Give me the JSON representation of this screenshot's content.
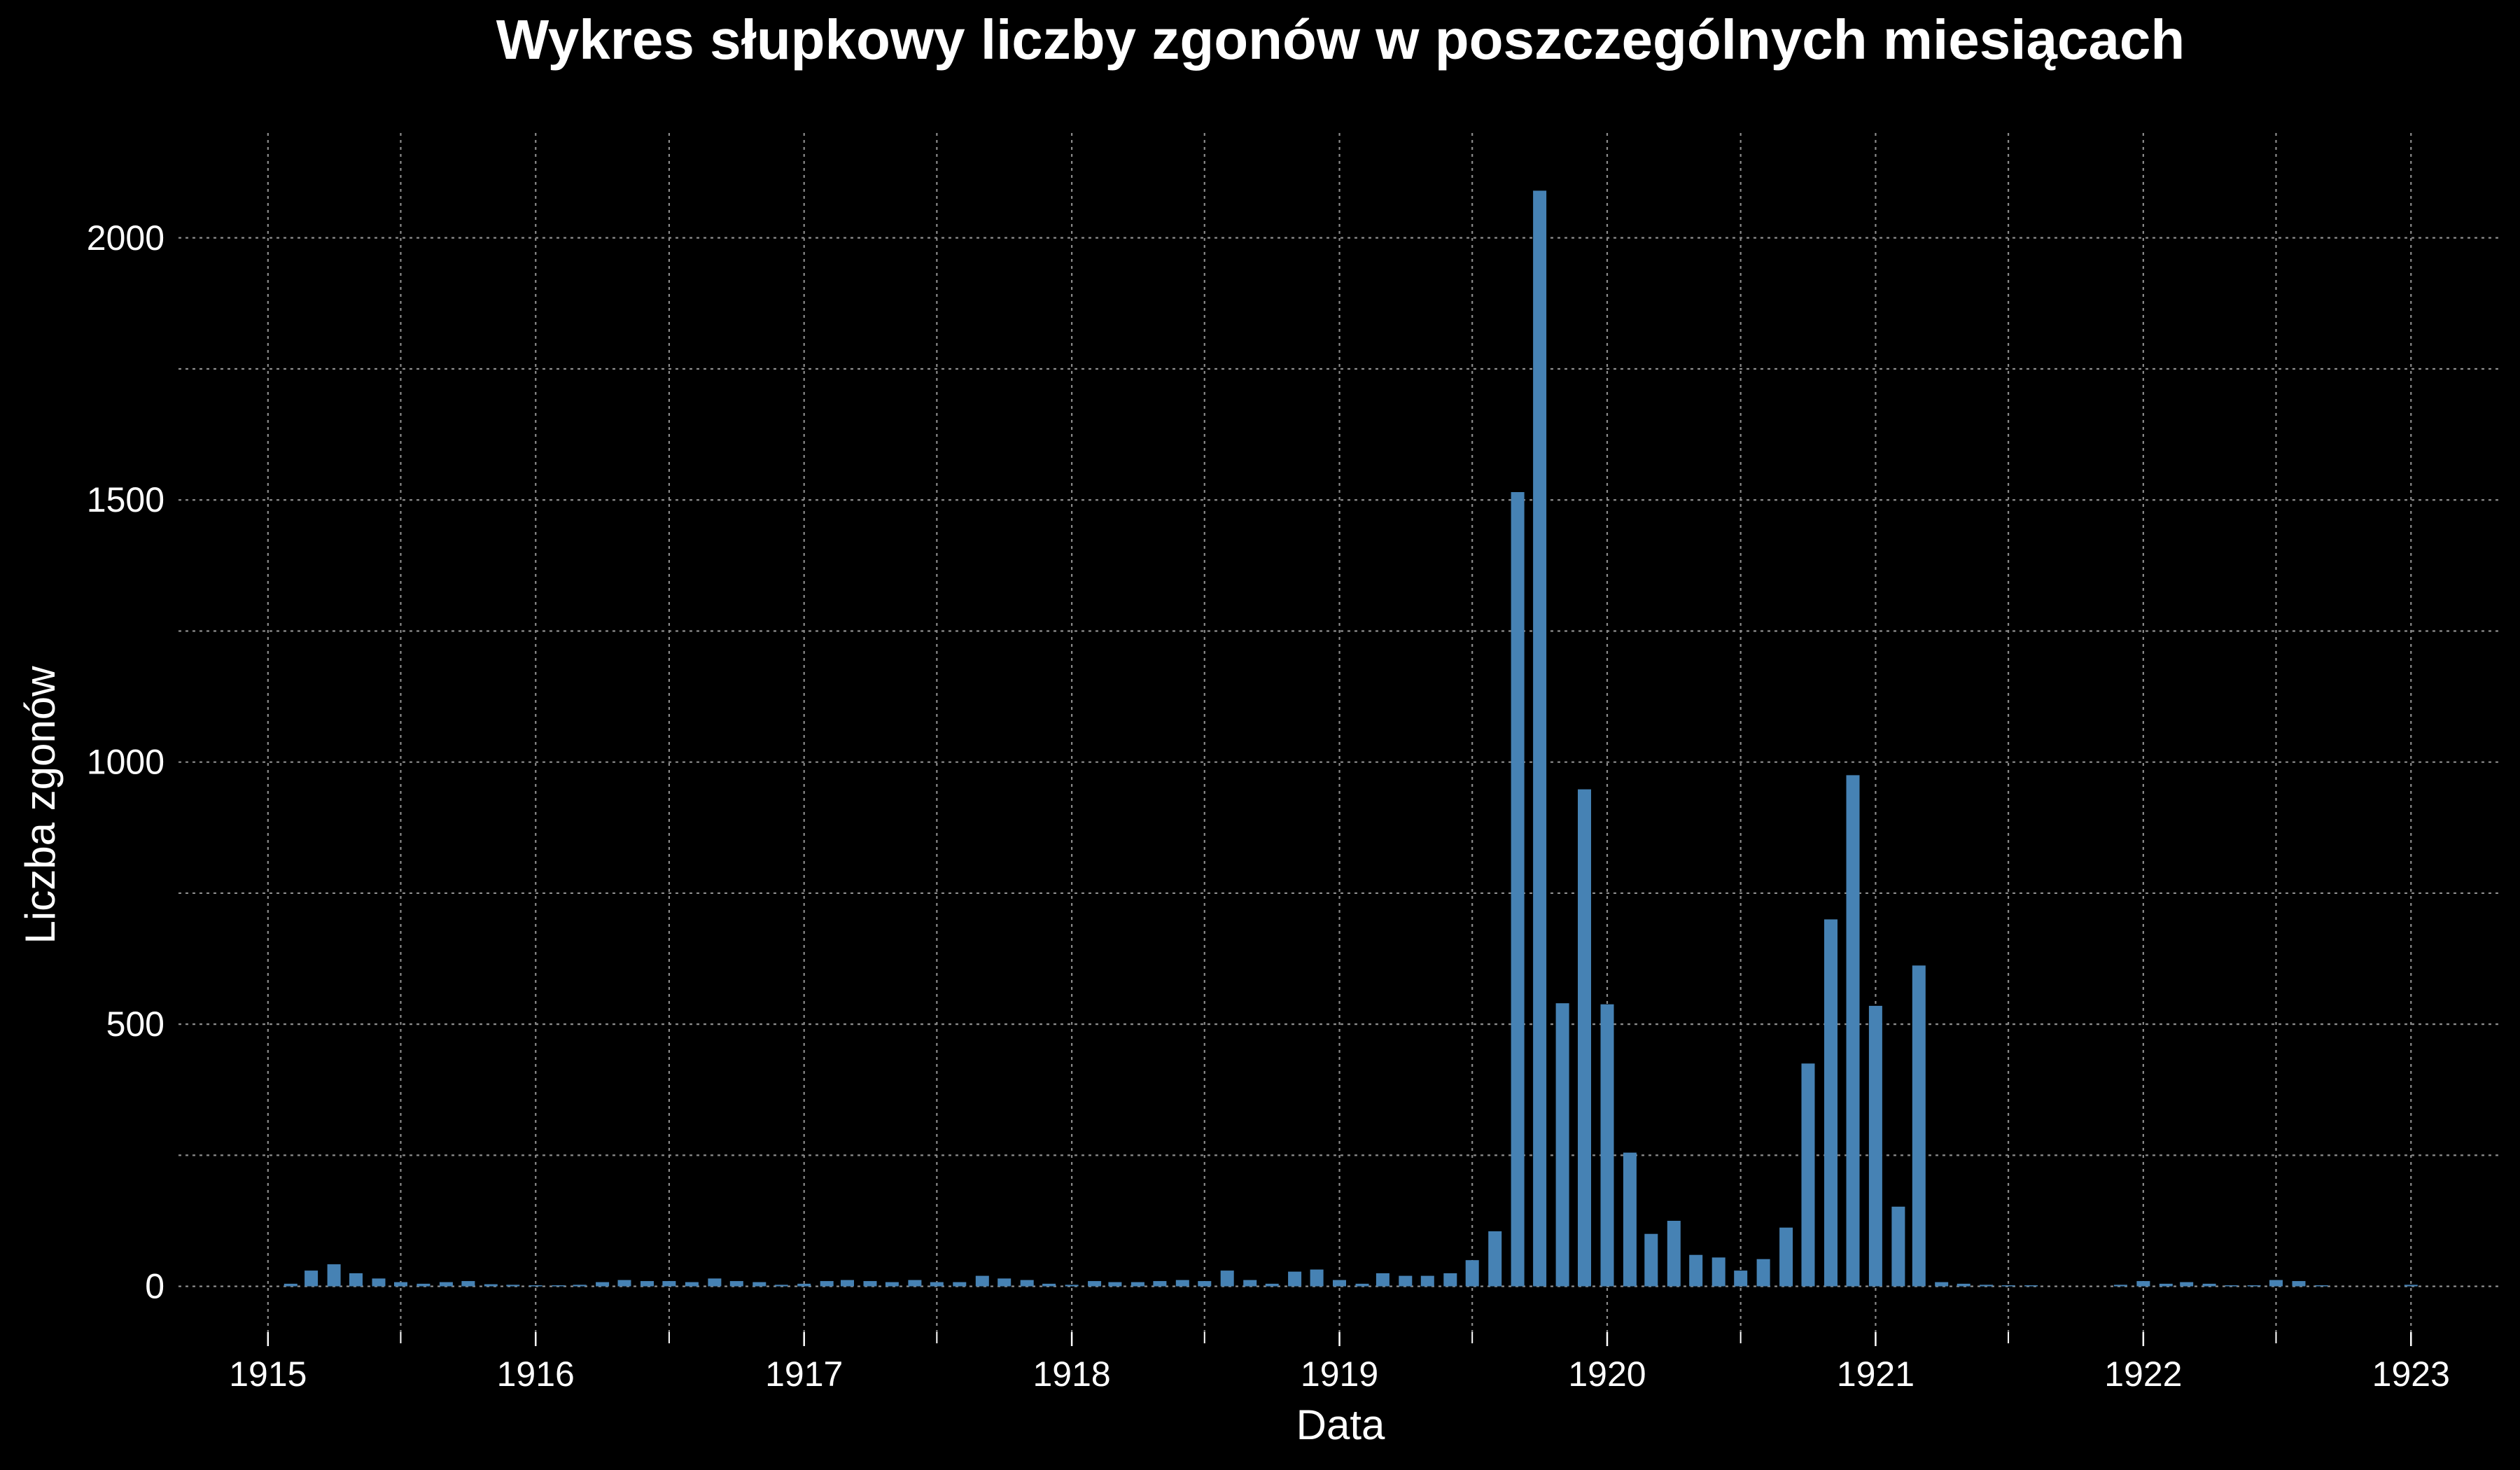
{
  "chart_data": {
    "type": "bar",
    "title": "Wykres słupkowy liczby zgonów w poszczególnych miesiącach",
    "xlabel": "Data",
    "ylabel": "Liczba zgonów",
    "x_tick_labels": [
      "1915",
      "1916",
      "1917",
      "1918",
      "1919",
      "1920",
      "1921",
      "1922",
      "1923"
    ],
    "y_tick_labels": [
      "0",
      "500",
      "1000",
      "1500",
      "2000"
    ],
    "ylim": [
      -90,
      2200
    ],
    "grid": true,
    "bar_color": "#4682b4",
    "series": [
      {
        "points": [
          [
            "1915-02",
            5
          ],
          [
            "1915-03",
            30
          ],
          [
            "1915-04",
            42
          ],
          [
            "1915-05",
            25
          ],
          [
            "1915-06",
            15
          ],
          [
            "1915-07",
            8
          ],
          [
            "1915-08",
            5
          ],
          [
            "1915-09",
            8
          ],
          [
            "1915-10",
            10
          ],
          [
            "1915-11",
            4
          ],
          [
            "1915-12",
            3
          ],
          [
            "1916-01",
            2
          ],
          [
            "1916-02",
            2
          ],
          [
            "1916-03",
            3
          ],
          [
            "1916-04",
            8
          ],
          [
            "1916-05",
            12
          ],
          [
            "1916-06",
            10
          ],
          [
            "1916-07",
            10
          ],
          [
            "1916-08",
            8
          ],
          [
            "1916-09",
            15
          ],
          [
            "1916-10",
            10
          ],
          [
            "1916-11",
            8
          ],
          [
            "1916-12",
            3
          ],
          [
            "1917-01",
            5
          ],
          [
            "1917-02",
            10
          ],
          [
            "1917-03",
            12
          ],
          [
            "1917-04",
            10
          ],
          [
            "1917-05",
            8
          ],
          [
            "1917-06",
            12
          ],
          [
            "1917-07",
            8
          ],
          [
            "1917-08",
            8
          ],
          [
            "1917-09",
            20
          ],
          [
            "1917-10",
            15
          ],
          [
            "1917-11",
            12
          ],
          [
            "1917-12",
            5
          ],
          [
            "1918-01",
            3
          ],
          [
            "1918-02",
            10
          ],
          [
            "1918-03",
            8
          ],
          [
            "1918-04",
            8
          ],
          [
            "1918-05",
            10
          ],
          [
            "1918-06",
            12
          ],
          [
            "1918-07",
            10
          ],
          [
            "1918-08",
            30
          ],
          [
            "1918-09",
            12
          ],
          [
            "1918-10",
            5
          ],
          [
            "1918-11",
            28
          ],
          [
            "1918-12",
            32
          ],
          [
            "1919-01",
            12
          ],
          [
            "1919-02",
            5
          ],
          [
            "1919-03",
            25
          ],
          [
            "1919-04",
            20
          ],
          [
            "1919-05",
            20
          ],
          [
            "1919-06",
            25
          ],
          [
            "1919-07",
            50
          ],
          [
            "1919-08",
            105
          ],
          [
            "1919-09",
            1515
          ],
          [
            "1919-10",
            2090
          ],
          [
            "1919-11",
            540
          ],
          [
            "1919-12",
            948
          ],
          [
            "1920-01",
            538
          ],
          [
            "1920-02",
            255
          ],
          [
            "1920-03",
            100
          ],
          [
            "1920-04",
            125
          ],
          [
            "1920-05",
            60
          ],
          [
            "1920-06",
            55
          ],
          [
            "1920-07",
            30
          ],
          [
            "1920-08",
            52
          ],
          [
            "1920-09",
            112
          ],
          [
            "1920-10",
            425
          ],
          [
            "1920-11",
            700
          ],
          [
            "1920-12",
            975
          ],
          [
            "1921-01",
            535
          ],
          [
            "1921-02",
            152
          ],
          [
            "1921-03",
            612
          ],
          [
            "1921-04",
            8
          ],
          [
            "1921-05",
            5
          ],
          [
            "1921-06",
            3
          ],
          [
            "1921-07",
            2
          ],
          [
            "1921-08",
            2
          ],
          [
            "1921-12",
            3
          ],
          [
            "1922-01",
            10
          ],
          [
            "1922-02",
            5
          ],
          [
            "1922-03",
            8
          ],
          [
            "1922-04",
            5
          ],
          [
            "1922-05",
            2
          ],
          [
            "1922-06",
            2
          ],
          [
            "1922-07",
            12
          ],
          [
            "1922-08",
            10
          ],
          [
            "1922-09",
            2
          ],
          [
            "1923-01",
            3
          ]
        ]
      }
    ]
  }
}
